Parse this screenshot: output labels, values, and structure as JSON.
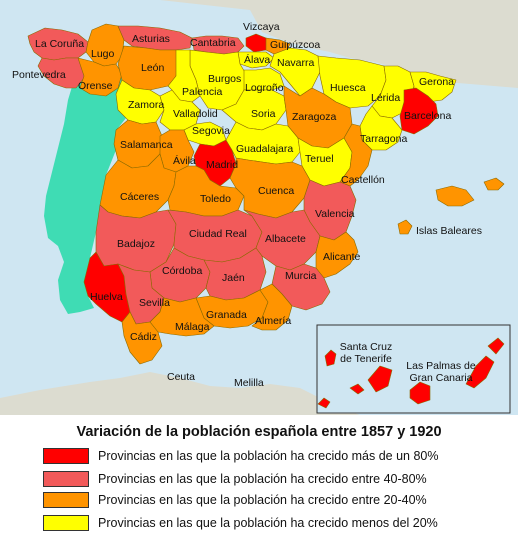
{
  "colors": {
    "sea": "#cfe6f2",
    "land": "#dcdcd0",
    "portugal": "#3fdcb4",
    "gt80": "#ff0000",
    "p40_80": "#f25a5a",
    "p20_40": "#ff9400",
    "lt20": "#ffff00"
  },
  "map": {
    "provinces": [
      {
        "label": "La Coruña",
        "category": "p40_80"
      },
      {
        "label": "Lugo",
        "category": "p20_40"
      },
      {
        "label": "Asturias",
        "category": "p40_80"
      },
      {
        "label": "Cantabria",
        "category": "p40_80"
      },
      {
        "label": "Vizcaya",
        "category": "gt80"
      },
      {
        "label": "Guipúzcoa",
        "category": "p20_40"
      },
      {
        "label": "Álava",
        "category": "lt20"
      },
      {
        "label": "Navarra",
        "category": "lt20"
      },
      {
        "label": "Pontevedra",
        "category": "p40_80"
      },
      {
        "label": "Orense",
        "category": "p20_40"
      },
      {
        "label": "León",
        "category": "p20_40"
      },
      {
        "label": "Burgos",
        "category": "lt20"
      },
      {
        "label": "Palencia",
        "category": "lt20"
      },
      {
        "label": "Logroño",
        "category": "lt20"
      },
      {
        "label": "Huesca",
        "category": "lt20"
      },
      {
        "label": "Lérida",
        "category": "lt20"
      },
      {
        "label": "Gerona",
        "category": "lt20"
      },
      {
        "label": "Barcelona",
        "category": "gt80"
      },
      {
        "label": "Zamora",
        "category": "lt20"
      },
      {
        "label": "Valladolid",
        "category": "lt20"
      },
      {
        "label": "Soria",
        "category": "lt20"
      },
      {
        "label": "Zaragoza",
        "category": "p20_40"
      },
      {
        "label": "Tarragona",
        "category": "lt20"
      },
      {
        "label": "Segovia",
        "category": "lt20"
      },
      {
        "label": "Salamanca",
        "category": "p20_40"
      },
      {
        "label": "Ávila",
        "category": "p20_40"
      },
      {
        "label": "Madrid",
        "category": "gt80"
      },
      {
        "label": "Guadalajara",
        "category": "lt20"
      },
      {
        "label": "Teruel",
        "category": "lt20"
      },
      {
        "label": "Castellón",
        "category": "p20_40"
      },
      {
        "label": "Cáceres",
        "category": "p20_40"
      },
      {
        "label": "Toledo",
        "category": "p20_40"
      },
      {
        "label": "Cuenca",
        "category": "p20_40"
      },
      {
        "label": "Valencia",
        "category": "p40_80"
      },
      {
        "label": "Islas Baleares",
        "category": "p20_40"
      },
      {
        "label": "Badajoz",
        "category": "p40_80"
      },
      {
        "label": "Ciudad Real",
        "category": "p40_80"
      },
      {
        "label": "Albacete",
        "category": "p40_80"
      },
      {
        "label": "Alicante",
        "category": "p20_40"
      },
      {
        "label": "Córdoba",
        "category": "p40_80"
      },
      {
        "label": "Jaén",
        "category": "p40_80"
      },
      {
        "label": "Murcia",
        "category": "p40_80"
      },
      {
        "label": "Huelva",
        "category": "gt80"
      },
      {
        "label": "Sevilla",
        "category": "p40_80"
      },
      {
        "label": "Granada",
        "category": "p20_40"
      },
      {
        "label": "Almería",
        "category": "p20_40"
      },
      {
        "label": "Málaga",
        "category": "p20_40"
      },
      {
        "label": "Cádiz",
        "category": "p20_40"
      },
      {
        "label": "Santa Cruz de Tenerife",
        "category": "gt80"
      },
      {
        "label": "Las Palmas de Gran Canaria",
        "category": "gt80"
      }
    ],
    "other_labels": [
      "Ceuta",
      "Melilla"
    ]
  },
  "legend": {
    "title": "Variación de la población española entre 1857 y 1920",
    "items": [
      {
        "label": "Provincias en las que la población ha crecido más de un 80%",
        "color": "#ff0000"
      },
      {
        "label": "Provincias en las que la población ha crecido entre 40-80%",
        "color": "#f25a5a"
      },
      {
        "label": "Provincias en las que la población ha crecido entre 20-40%",
        "color": "#ff9400"
      },
      {
        "label": "Provincias en las que la población ha crecido menos del 20%",
        "color": "#ffff00"
      }
    ]
  }
}
